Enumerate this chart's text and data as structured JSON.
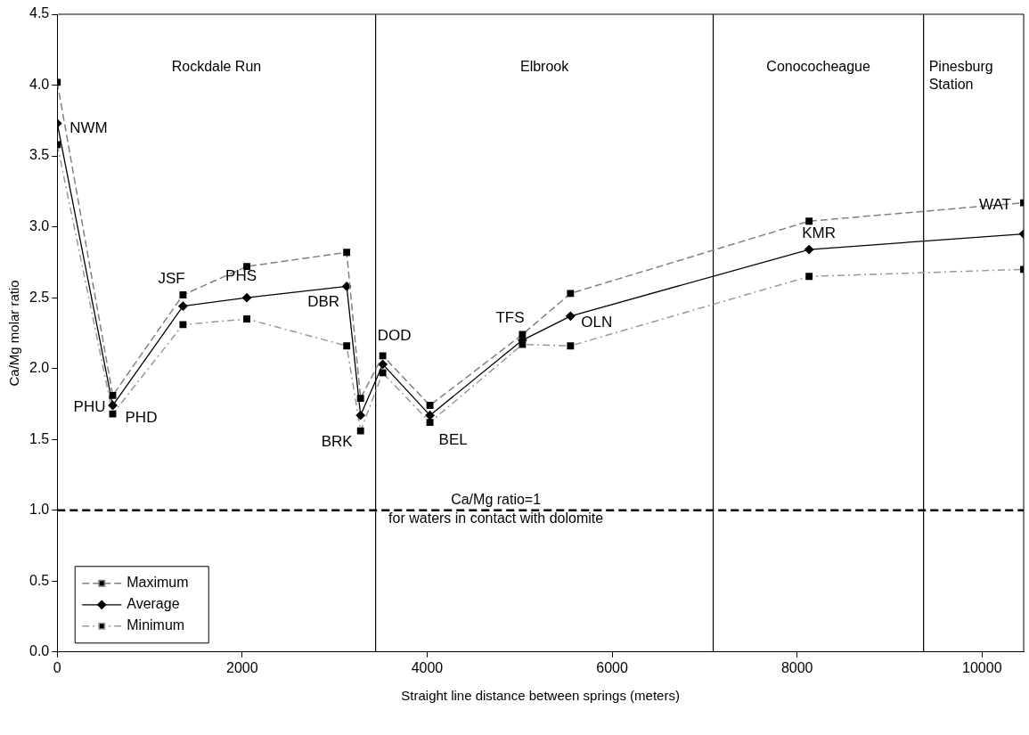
{
  "chart_data": {
    "type": "line",
    "xlabel": "Straight line distance between springs (meters)",
    "ylabel": "Ca/Mg molar ratio",
    "x": [
      0,
      600,
      1360,
      2050,
      3130,
      3280,
      3520,
      4030,
      5030,
      5550,
      8130,
      10450
    ],
    "series": [
      {
        "name": "Maximum",
        "color": "#808080",
        "line_style": "dashed",
        "marker": "square",
        "values": [
          4.02,
          1.81,
          2.52,
          2.72,
          2.82,
          1.79,
          2.09,
          1.74,
          2.24,
          2.53,
          3.04,
          3.17
        ]
      },
      {
        "name": "Average",
        "color": "#000000",
        "line_style": "solid",
        "marker": "diamond",
        "values": [
          3.73,
          1.74,
          2.44,
          2.5,
          2.58,
          1.67,
          2.03,
          1.67,
          2.2,
          2.37,
          2.84,
          2.95
        ]
      },
      {
        "name": "Minimum",
        "color": "#999999",
        "line_style": "dashdot",
        "marker": "square",
        "values": [
          3.58,
          1.68,
          2.31,
          2.35,
          2.16,
          1.56,
          1.97,
          1.62,
          2.17,
          2.16,
          2.65,
          2.7
        ]
      }
    ],
    "xlim": [
      0,
      10450
    ],
    "xticks": [
      0,
      2000,
      4000,
      6000,
      8000,
      10000
    ],
    "ylim": [
      0,
      4.5
    ],
    "yticks": [
      {
        "value": 0,
        "label": "0.0"
      },
      {
        "value": 0.5,
        "label": "0.5"
      },
      {
        "value": 1,
        "label": "1.0"
      },
      {
        "value": 1.5,
        "label": "1.5"
      },
      {
        "value": 2,
        "label": "2.0"
      },
      {
        "value": 2.5,
        "label": "2.5"
      },
      {
        "value": 3,
        "label": "3.0"
      },
      {
        "value": 3.5,
        "label": "3.5"
      },
      {
        "value": 4,
        "label": "4.0"
      },
      {
        "value": 4.5,
        "label": "4.5"
      }
    ],
    "grid": false,
    "legend": "bottom left",
    "ref_lines": [
      {
        "axis": "y",
        "value": 1,
        "label": "Ca/Mg ratio=1\nfor waters in contact with dolomite",
        "color": "#000000",
        "line_style": "dashed"
      },
      {
        "axis": "x",
        "value": 3443,
        "color": "#000000",
        "line_style": "solid"
      },
      {
        "axis": "x",
        "value": 7093,
        "color": "#000000",
        "line_style": "solid"
      },
      {
        "axis": "x",
        "value": 9368,
        "color": "#000000",
        "line_style": "solid"
      }
    ],
    "annotations": [
      "Rockdale Run",
      "Elbrook",
      "Conococheague",
      "Pinesburg Station",
      {
        "text": "NWM",
        "x": 0,
        "y": 3.73
      },
      {
        "text": "PHU",
        "x": 600,
        "y": 1.74
      },
      {
        "text": "PHD",
        "x": 600,
        "y": 1.74
      },
      {
        "text": "JSF",
        "x": 1360,
        "y": 2.52
      },
      {
        "text": "PHS",
        "x": 2050,
        "y": 2.5
      },
      {
        "text": "DBR",
        "x": 3130,
        "y": 2.58
      },
      {
        "text": "BRK",
        "x": 3280,
        "y": 1.67
      },
      {
        "text": "DOD",
        "x": 3520,
        "y": 2.09
      },
      {
        "text": "BEL",
        "x": 4030,
        "y": 1.67
      },
      {
        "text": "TFS",
        "x": 5030,
        "y": 2.24
      },
      {
        "text": "OLN",
        "x": 5550,
        "y": 2.37
      },
      {
        "text": "KMR",
        "x": 8130,
        "y": 2.84
      },
      {
        "text": "WAT",
        "x": 10450,
        "y": 2.95
      }
    ]
  }
}
